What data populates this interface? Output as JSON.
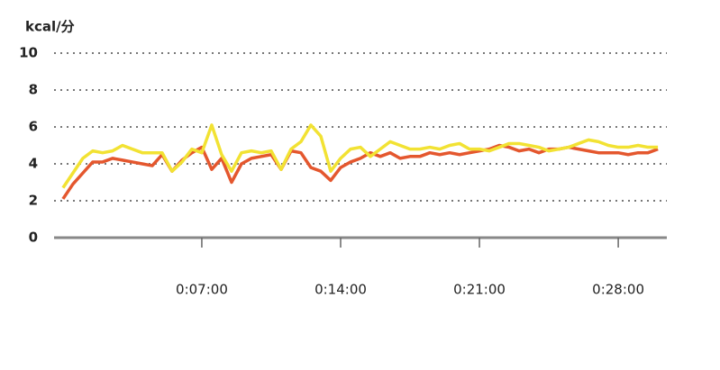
{
  "chart_data": {
    "type": "line",
    "ylabel": "kcal/分",
    "x": [
      0,
      30,
      60,
      90,
      120,
      150,
      180,
      210,
      240,
      270,
      300,
      330,
      360,
      390,
      420,
      450,
      480,
      510,
      540,
      570,
      600,
      630,
      660,
      690,
      720,
      750,
      780,
      810,
      840,
      870,
      900,
      930,
      960,
      990,
      1020,
      1050,
      1080,
      1110,
      1140,
      1170,
      1200,
      1230,
      1260,
      1290,
      1320,
      1350,
      1380,
      1410,
      1440,
      1470,
      1500,
      1530,
      1560,
      1590,
      1620,
      1650,
      1680,
      1710,
      1740,
      1770,
      1800
    ],
    "series": [
      {
        "color": "#e4572e",
        "values": [
          2.1,
          2.9,
          3.5,
          4.1,
          4.1,
          4.3,
          4.2,
          4.1,
          4.0,
          3.9,
          4.5,
          3.6,
          4.2,
          4.6,
          4.9,
          3.7,
          4.3,
          3.0,
          4.0,
          4.3,
          4.4,
          4.5,
          3.7,
          4.7,
          4.6,
          3.8,
          3.6,
          3.1,
          3.8,
          4.1,
          4.3,
          4.6,
          4.4,
          4.6,
          4.3,
          4.4,
          4.4,
          4.6,
          4.5,
          4.6,
          4.5,
          4.6,
          4.7,
          4.8,
          5.0,
          4.9,
          4.7,
          4.8,
          4.6,
          4.8,
          4.8,
          4.9,
          4.8,
          4.7,
          4.6,
          4.6,
          4.6,
          4.5,
          4.6,
          4.6,
          4.8
        ]
      },
      {
        "color": "#f2e233",
        "values": [
          2.7,
          3.5,
          4.3,
          4.7,
          4.6,
          4.7,
          5.0,
          4.8,
          4.6,
          4.6,
          4.6,
          3.6,
          4.1,
          4.8,
          4.6,
          6.1,
          4.5,
          3.6,
          4.6,
          4.7,
          4.6,
          4.7,
          3.7,
          4.8,
          5.2,
          6.1,
          5.5,
          3.6,
          4.3,
          4.8,
          4.9,
          4.4,
          4.8,
          5.2,
          5.0,
          4.8,
          4.8,
          4.9,
          4.8,
          5.0,
          5.1,
          4.8,
          4.8,
          4.7,
          4.9,
          5.1,
          5.1,
          5.0,
          4.9,
          4.7,
          4.8,
          4.9,
          5.1,
          5.3,
          5.2,
          5.0,
          4.9,
          4.9,
          5.0,
          4.9,
          4.9
        ]
      }
    ],
    "xlim": [
      -27,
      1827
    ],
    "xticks": [
      {
        "value": 420,
        "label": "0:07:00"
      },
      {
        "value": 840,
        "label": "0:14:00"
      },
      {
        "value": 1260,
        "label": "0:21:00"
      },
      {
        "value": 1680,
        "label": "0:28:00"
      }
    ],
    "ylim": [
      0,
      10
    ],
    "yticks": [
      0,
      2,
      4,
      6,
      8,
      10
    ],
    "grid": true
  }
}
